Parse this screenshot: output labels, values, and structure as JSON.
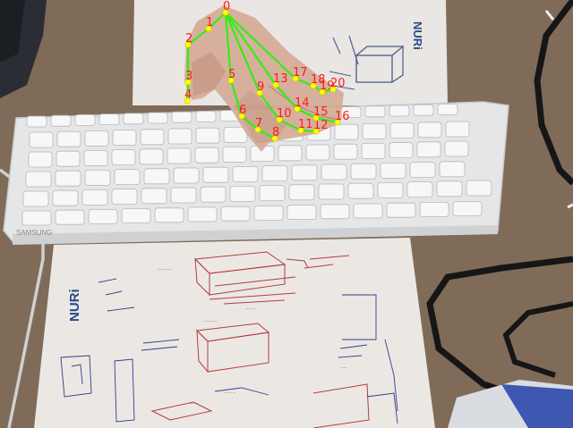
{
  "scene": {
    "desk_color": "#8a7563",
    "paper_color": "#ece8e4",
    "keyboard_color": "#e6e8ea",
    "cable_color": "#1a1a1a",
    "hand_color": "#d7b09c"
  },
  "top_paper": {
    "brand": "NURi"
  },
  "bottom_paper": {
    "brand": "NURi"
  },
  "keyboard": {
    "brand": "SAMSUNG"
  },
  "hand_landmarks": {
    "point_color": "#ffff00",
    "line_color": "#33ee11",
    "label_color": "#ff1a1a",
    "labels": [
      "0",
      "1",
      "2",
      "3",
      "4",
      "5",
      "6",
      "7",
      "8",
      "9",
      "10",
      "11",
      "12",
      "13",
      "14",
      "15",
      "16",
      "17",
      "18",
      "19",
      "20"
    ]
  }
}
